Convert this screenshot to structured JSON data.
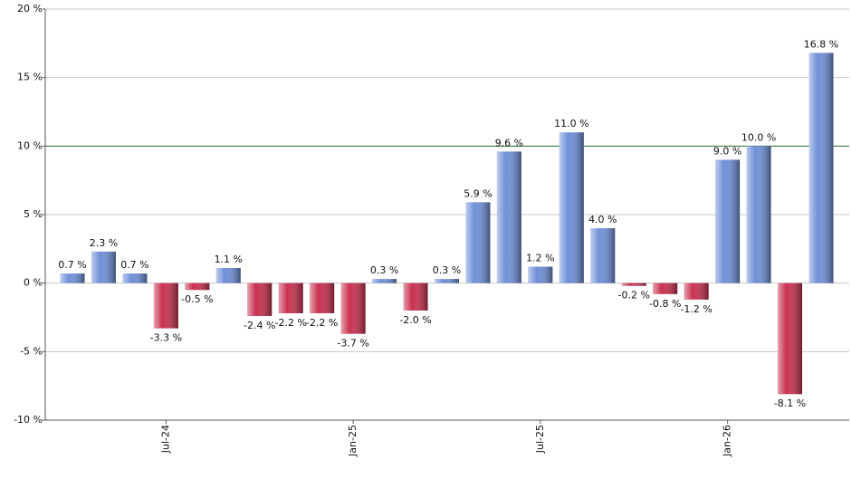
{
  "chart_data": {
    "type": "bar",
    "categories": [
      null,
      null,
      null,
      "Jul-24",
      null,
      null,
      null,
      null,
      null,
      "Jan-25",
      null,
      null,
      null,
      null,
      null,
      "Jul-25",
      null,
      null,
      null,
      null,
      null,
      "Jan-26",
      null,
      null,
      null
    ],
    "values": [
      0.7,
      2.3,
      0.7,
      -3.3,
      -0.5,
      1.1,
      -2.4,
      -2.2,
      -2.2,
      -3.7,
      0.3,
      -2.0,
      0.3,
      5.9,
      9.6,
      1.2,
      11.0,
      4.0,
      -0.2,
      -0.8,
      -1.2,
      9.0,
      10.0,
      -8.1,
      16.8
    ],
    "value_labels": [
      "0.7 %",
      "2.3 %",
      "0.7 %",
      "-3.3 %",
      "-0.5 %",
      "1.1 %",
      "-2.4 %",
      "-2.2 %",
      "-2.2 %",
      "-3.7 %",
      "0.3 %",
      "-2.0 %",
      "0.3 %",
      "5.9 %",
      "9.6 %",
      "1.2 %",
      "11.0 %",
      "4.0 %",
      "-0.2 %",
      "-0.8 %",
      "-1.2 %",
      "9.0 %",
      "10.0 %",
      "-8.1 %",
      "16.8 %"
    ],
    "positive_color": "#6f8fd8",
    "negative_color": "#c8304f",
    "ylim": [
      -10,
      20
    ],
    "yticks": [
      {
        "value": -10,
        "label": "-10 %"
      },
      {
        "value": -5,
        "label": "-5 %"
      },
      {
        "value": 0,
        "label": "0 %"
      },
      {
        "value": 5,
        "label": "5 %"
      },
      {
        "value": 10,
        "label": "10 %"
      },
      {
        "value": 15,
        "label": "15 %"
      },
      {
        "value": 20,
        "label": "20 %"
      }
    ],
    "grid": true,
    "reference_line": 10,
    "reference_color": "#2e7d32"
  }
}
